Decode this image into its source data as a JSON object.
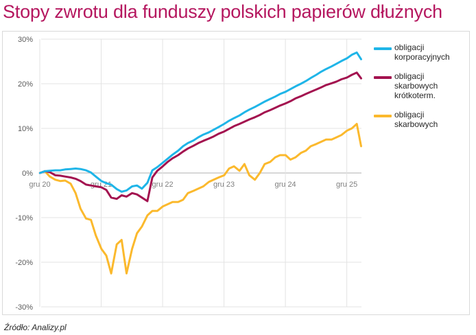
{
  "title": "Stopy zwrotu dla funduszy polskich papierów dłużnych",
  "source": "Źródło: Analizy.pl",
  "chart_data": {
    "type": "line",
    "title": "Stopy zwrotu dla funduszy polskich papierów dłużnych",
    "xlabel": "",
    "ylabel": "",
    "ylim": [
      -30,
      30
    ],
    "y_ticks": [
      "30%",
      "20%",
      "10%",
      "0%",
      "-10%",
      "-20%",
      "-30%"
    ],
    "x_ticks": [
      "gru 20",
      "gru 21",
      "gru 22",
      "gru 23",
      "gru 24",
      "gru 25"
    ],
    "x_tick_years": [
      2020.917,
      2021.917,
      2022.917,
      2023.917,
      2024.917,
      2025.917
    ],
    "xlim": [
      2020.917,
      2026.167
    ],
    "grid": true,
    "legend_position": "right",
    "series": [
      {
        "name": "obligacji\nkorporacyjnych",
        "color": "#1fb5e8",
        "x": [
          2020.92,
          2021.0,
          2021.08,
          2021.17,
          2021.25,
          2021.33,
          2021.42,
          2021.5,
          2021.58,
          2021.67,
          2021.75,
          2021.83,
          2021.92,
          2022.0,
          2022.08,
          2022.17,
          2022.25,
          2022.33,
          2022.42,
          2022.5,
          2022.58,
          2022.67,
          2022.75,
          2022.83,
          2022.92,
          2023.0,
          2023.08,
          2023.17,
          2023.25,
          2023.33,
          2023.42,
          2023.5,
          2023.58,
          2023.67,
          2023.75,
          2023.83,
          2023.92,
          2024.0,
          2024.08,
          2024.17,
          2024.25,
          2024.33,
          2024.42,
          2024.5,
          2024.58,
          2024.67,
          2024.75,
          2024.83,
          2024.92,
          2025.0,
          2025.08,
          2025.17,
          2025.25,
          2025.33,
          2025.42,
          2025.5,
          2025.58,
          2025.67,
          2025.75,
          2025.83,
          2025.92,
          2026.0,
          2026.08,
          2026.15
        ],
        "values": [
          0.0,
          0.4,
          0.5,
          0.6,
          0.6,
          0.8,
          0.9,
          1.0,
          0.9,
          0.6,
          0.1,
          -0.8,
          -1.8,
          -2.3,
          -2.6,
          -3.6,
          -4.2,
          -3.9,
          -3.0,
          -2.8,
          -3.5,
          -2.2,
          0.6,
          1.3,
          2.3,
          3.2,
          4.1,
          5.0,
          6.0,
          6.7,
          7.3,
          8.0,
          8.6,
          9.1,
          9.7,
          10.3,
          11.0,
          11.7,
          12.3,
          12.9,
          13.6,
          14.2,
          14.8,
          15.4,
          16.0,
          16.6,
          17.1,
          17.7,
          18.2,
          18.8,
          19.4,
          20.0,
          20.6,
          21.3,
          22.0,
          22.7,
          23.3,
          23.9,
          24.5,
          25.1,
          25.7,
          26.5,
          27.0,
          25.5
        ]
      },
      {
        "name": "obligacji\nskarbowych\nkrótkoterm.",
        "color": "#a3124f",
        "x": [
          2020.92,
          2021.0,
          2021.08,
          2021.17,
          2021.25,
          2021.33,
          2021.42,
          2021.5,
          2021.58,
          2021.67,
          2021.75,
          2021.83,
          2021.92,
          2022.0,
          2022.08,
          2022.17,
          2022.25,
          2022.33,
          2022.42,
          2022.5,
          2022.58,
          2022.67,
          2022.75,
          2022.83,
          2022.92,
          2023.0,
          2023.08,
          2023.17,
          2023.25,
          2023.33,
          2023.42,
          2023.5,
          2023.58,
          2023.67,
          2023.75,
          2023.83,
          2023.92,
          2024.0,
          2024.08,
          2024.17,
          2024.25,
          2024.33,
          2024.42,
          2024.5,
          2024.58,
          2024.67,
          2024.75,
          2024.83,
          2024.92,
          2025.0,
          2025.08,
          2025.17,
          2025.25,
          2025.33,
          2025.42,
          2025.5,
          2025.58,
          2025.67,
          2025.75,
          2025.83,
          2025.92,
          2026.0,
          2026.08,
          2026.15
        ],
        "values": [
          0.0,
          0.4,
          0.2,
          -0.5,
          -0.6,
          -0.8,
          -1.0,
          -1.3,
          -1.8,
          -2.6,
          -2.8,
          -3.0,
          -3.2,
          -3.8,
          -5.5,
          -5.8,
          -5.0,
          -5.3,
          -4.5,
          -4.8,
          -5.5,
          -6.3,
          -1.0,
          0.5,
          1.5,
          2.5,
          3.3,
          4.0,
          4.8,
          5.5,
          6.1,
          6.7,
          7.2,
          7.7,
          8.2,
          8.8,
          9.3,
          9.9,
          10.5,
          11.0,
          11.5,
          12.0,
          12.5,
          13.0,
          13.6,
          14.1,
          14.6,
          15.1,
          15.6,
          16.1,
          16.7,
          17.2,
          17.7,
          18.2,
          18.7,
          19.2,
          19.7,
          20.1,
          20.5,
          21.0,
          21.4,
          22.0,
          22.5,
          21.2
        ]
      },
      {
        "name": "obligacji\nskarbowych",
        "color": "#fbb92d",
        "x": [
          2020.92,
          2021.0,
          2021.08,
          2021.17,
          2021.25,
          2021.33,
          2021.42,
          2021.5,
          2021.58,
          2021.67,
          2021.75,
          2021.83,
          2021.92,
          2022.0,
          2022.08,
          2022.17,
          2022.25,
          2022.33,
          2022.42,
          2022.5,
          2022.58,
          2022.67,
          2022.75,
          2022.83,
          2022.92,
          2023.0,
          2023.08,
          2023.17,
          2023.25,
          2023.33,
          2023.42,
          2023.5,
          2023.58,
          2023.67,
          2023.75,
          2023.83,
          2023.92,
          2024.0,
          2024.08,
          2024.17,
          2024.25,
          2024.33,
          2024.42,
          2024.5,
          2024.58,
          2024.67,
          2024.75,
          2024.83,
          2024.92,
          2025.0,
          2025.08,
          2025.17,
          2025.25,
          2025.33,
          2025.42,
          2025.5,
          2025.58,
          2025.67,
          2025.75,
          2025.83,
          2025.92,
          2026.0,
          2026.08,
          2026.15
        ],
        "values": [
          0.0,
          0.4,
          -0.8,
          -1.5,
          -1.8,
          -1.7,
          -2.4,
          -4.5,
          -8.0,
          -10.2,
          -10.5,
          -14.0,
          -17.0,
          -18.5,
          -22.5,
          -16.0,
          -15.0,
          -22.5,
          -17.0,
          -13.5,
          -12.0,
          -9.5,
          -8.5,
          -8.5,
          -7.5,
          -7.0,
          -6.5,
          -6.5,
          -6.0,
          -4.5,
          -4.0,
          -3.5,
          -3.0,
          -2.0,
          -1.5,
          -1.0,
          -0.5,
          1.0,
          1.5,
          0.5,
          2.0,
          -0.5,
          -1.5,
          0.0,
          2.0,
          2.5,
          3.5,
          4.0,
          4.0,
          3.0,
          3.5,
          4.5,
          5.0,
          6.0,
          6.5,
          7.0,
          7.5,
          7.5,
          8.0,
          8.5,
          9.5,
          10.0,
          11.0,
          6.0
        ]
      }
    ]
  }
}
